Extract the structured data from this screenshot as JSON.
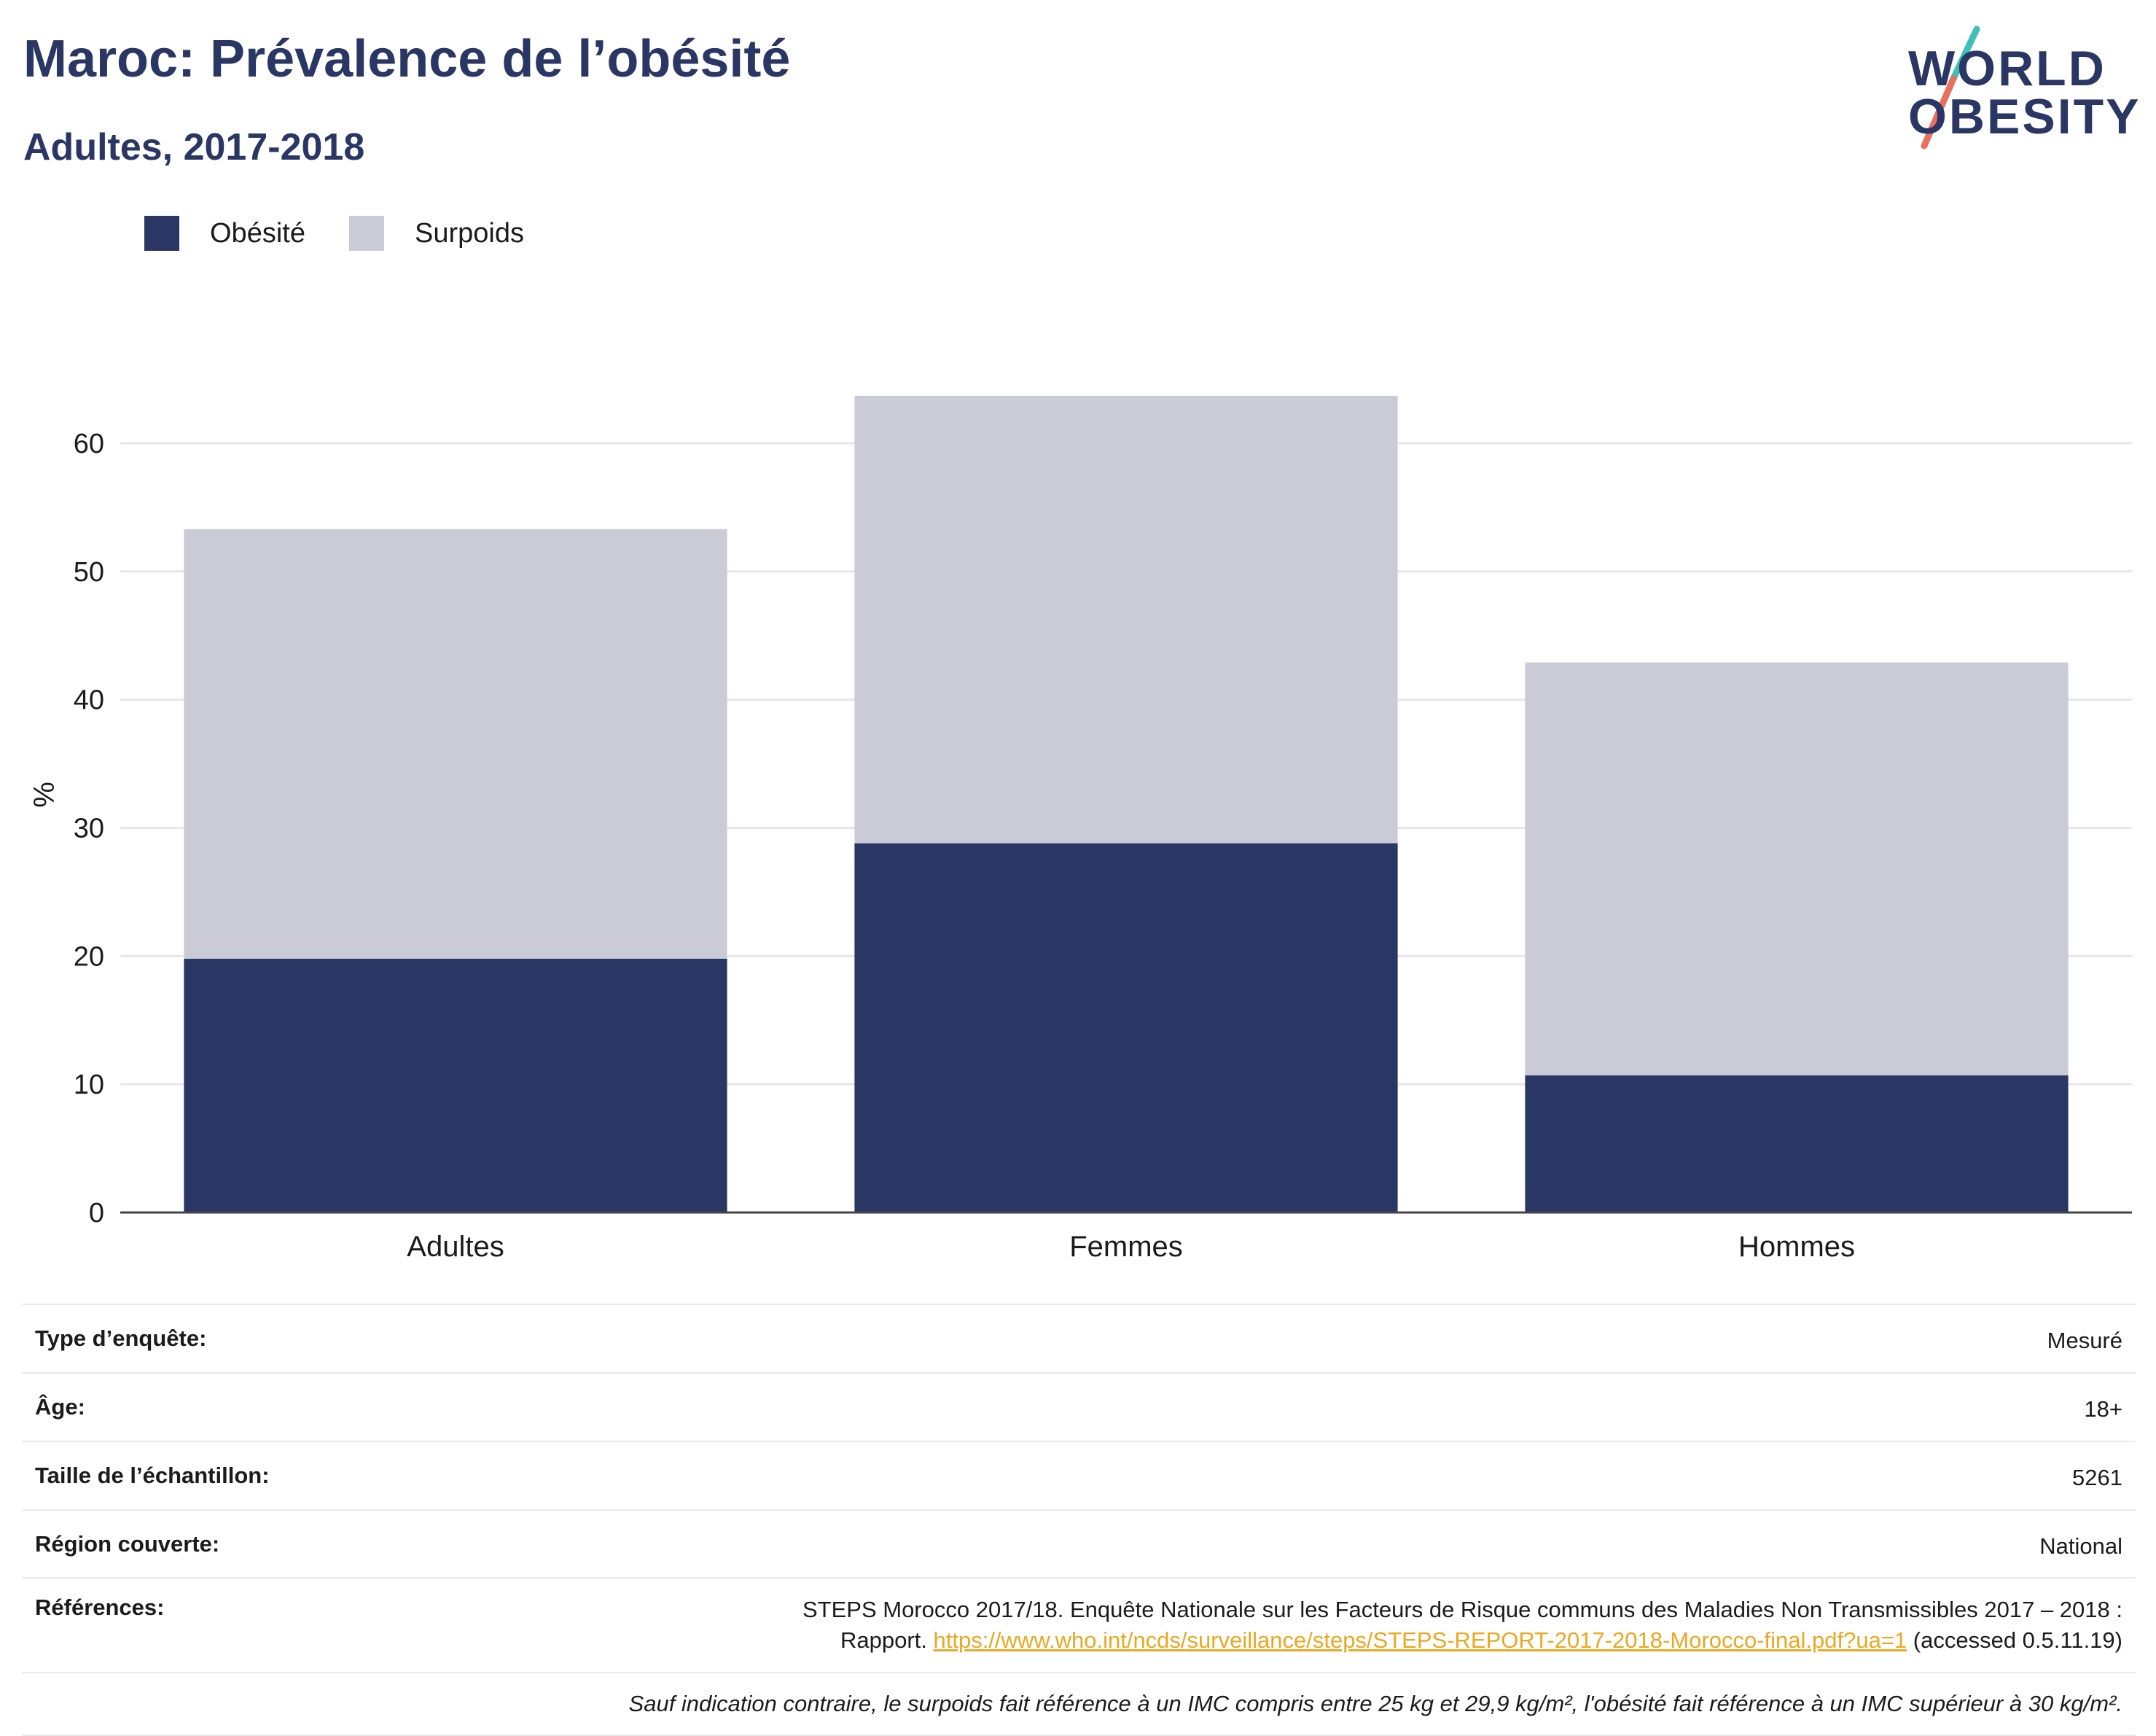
{
  "header": {
    "title": "Maroc: Prévalence de l’obésité",
    "subtitle": "Adultes, 2017-2018"
  },
  "logo": {
    "line1": "WORLD",
    "line2": "OBESITY"
  },
  "colors": {
    "obesity": "#2a3663",
    "overweight": "#cacbd6",
    "link": "#e9a823",
    "logo_teal": "#3fbfb8",
    "logo_coral": "#e8705f"
  },
  "chart_data": {
    "type": "bar",
    "stacked": true,
    "categories": [
      "Adultes",
      "Femmes",
      "Hommes"
    ],
    "series": [
      {
        "name": "Obésité",
        "values": [
          19.8,
          28.8,
          10.7
        ],
        "color": "#2a3663"
      },
      {
        "name": "Surpoids",
        "values": [
          33.5,
          34.9,
          32.2
        ],
        "color": "#cacbd6"
      }
    ],
    "ylabel": "%",
    "xlabel": "",
    "ylim": [
      0,
      65
    ],
    "yticks": [
      0,
      10,
      20,
      30,
      40,
      50,
      60
    ],
    "grid": true,
    "legend_position": "top-left"
  },
  "meta": {
    "rows": [
      {
        "label": "Type d’enquête:",
        "value": "Mesuré"
      },
      {
        "label": "Âge:",
        "value": "18+"
      },
      {
        "label": "Taille de l’échantillon:",
        "value": "5261"
      },
      {
        "label": "Région couverte:",
        "value": "National"
      }
    ],
    "references": {
      "label": "Références:",
      "text_line1": "STEPS Morocco 2017/18. Enquête Nationale sur les Facteurs de Risque communs des Maladies Non Transmissibles 2017 – 2018 :",
      "text_line2_prefix": "Rapport.",
      "url": "https://www.who.int/ncds/surveillance/steps/STEPS-REPORT-2017-2018-Morocco-final.pdf?ua=1",
      "accessed": "(accessed 0.5.11.19)"
    },
    "footnote": "Sauf indication contraire, le surpoids fait référence à un IMC compris entre 25 kg et 29,9 kg/m², l'obésité fait référence à un IMC supérieur à 30 kg/m²."
  }
}
